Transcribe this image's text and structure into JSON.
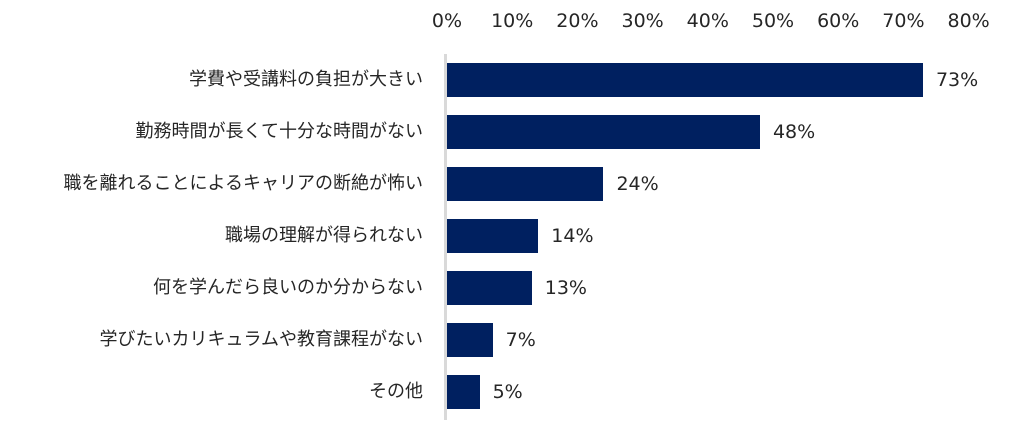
{
  "chart_data": {
    "type": "bar",
    "orientation": "horizontal",
    "title": "",
    "xlabel": "",
    "ylabel": "",
    "xlim": [
      0,
      80
    ],
    "x_ticks": [
      "0%",
      "10%",
      "20%",
      "30%",
      "40%",
      "50%",
      "60%",
      "70%",
      "80%"
    ],
    "x_axis_position": "top",
    "grid": false,
    "legend": null,
    "bar_color": "#002060",
    "categories": [
      "学費や受講料の負担が大きい",
      "勤務時間が長くて十分な時間がない",
      "職を離れることによるキャリアの断絶が怖い",
      "職場の理解が得られない",
      "何を学んだら良いのか分からない",
      "学びたいカリキュラムや教育課程がない",
      "その他"
    ],
    "values": [
      73,
      48,
      24,
      14,
      13,
      7,
      5
    ],
    "value_labels": [
      "73%",
      "48%",
      "24%",
      "14%",
      "13%",
      "7%",
      "5%"
    ]
  }
}
